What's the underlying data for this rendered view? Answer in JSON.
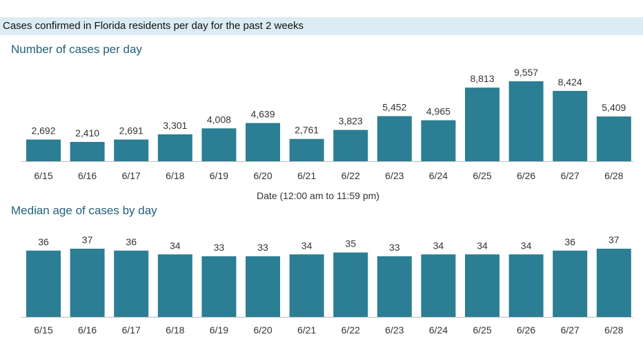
{
  "header": {
    "title": "Cases confirmed in Florida residents per day for the past 2 weeks"
  },
  "colors": {
    "bar": "#2b7e93",
    "header_band": "#dcebf4",
    "section_title": "#1f5f7a"
  },
  "chart_data": [
    {
      "type": "bar",
      "title": "Number of cases per day",
      "xlabel": "Date (12:00 am to 11:59 pm)",
      "ylabel": "",
      "categories": [
        "6/15",
        "6/16",
        "6/17",
        "6/18",
        "6/19",
        "6/20",
        "6/21",
        "6/22",
        "6/23",
        "6/24",
        "6/25",
        "6/26",
        "6/27",
        "6/28"
      ],
      "values": [
        2692,
        2410,
        2691,
        3301,
        4008,
        4639,
        2761,
        3823,
        5452,
        4965,
        8813,
        9557,
        8424,
        5409
      ],
      "value_labels": [
        "2,692",
        "2,410",
        "2,691",
        "3,301",
        "4,008",
        "4,639",
        "2,761",
        "3,823",
        "5,452",
        "4,965",
        "8,813",
        "9,557",
        "8,424",
        "5,409"
      ],
      "ylim": [
        0,
        9557
      ],
      "grid": false
    },
    {
      "type": "bar",
      "title": "Median age of cases by day",
      "xlabel": "",
      "ylabel": "",
      "categories": [
        "6/15",
        "6/16",
        "6/17",
        "6/18",
        "6/19",
        "6/20",
        "6/21",
        "6/22",
        "6/23",
        "6/24",
        "6/25",
        "6/26",
        "6/27",
        "6/28"
      ],
      "values": [
        36,
        37,
        36,
        34,
        33,
        33,
        34,
        35,
        33,
        34,
        34,
        34,
        36,
        37
      ],
      "value_labels": [
        "36",
        "37",
        "36",
        "34",
        "33",
        "33",
        "34",
        "35",
        "33",
        "34",
        "34",
        "34",
        "36",
        "37"
      ],
      "ylim": [
        0,
        37
      ],
      "grid": false
    }
  ]
}
